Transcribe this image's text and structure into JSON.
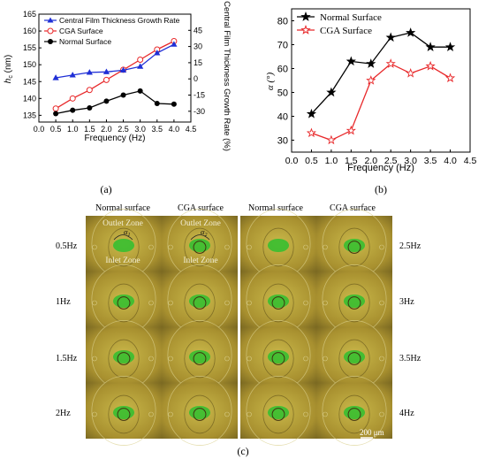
{
  "panels": {
    "a": {
      "label": "(a)",
      "xlabel": "Frequency (Hz)",
      "ylabel_left": "h",
      "ylabel_left_sub": "c",
      "ylabel_left_unit": " (nm)",
      "ylabel_right": "Central Film Thickness Growth Rate (%)",
      "xticks": [
        "0.0",
        "0.5",
        "1.0",
        "1.5",
        "2.0",
        "2.5",
        "3.0",
        "3.5",
        "4.0",
        "4.5"
      ],
      "yticks_left": [
        "135",
        "140",
        "145",
        "150",
        "155",
        "160",
        "165"
      ],
      "yticks_right": [
        "-30",
        "-15",
        "0",
        "15",
        "30",
        "45"
      ],
      "legend": [
        "Central Film Thickness Growth Rate",
        "CGA Surface",
        "Normal Surface"
      ]
    },
    "b": {
      "label": "(b)",
      "xlabel": "Frequency (Hz)",
      "ylabel": "α (°)",
      "xticks": [
        "0.0",
        "0.5",
        "1.0",
        "1.5",
        "2.0",
        "2.5",
        "3.0",
        "3.5",
        "4.0",
        "4.5"
      ],
      "yticks": [
        "30",
        "40",
        "50",
        "60",
        "70",
        "80"
      ],
      "legend": [
        "Normal Surface",
        "CGA Surface"
      ]
    },
    "c": {
      "label": "(c)",
      "headers": [
        "Normal surface",
        "CGA surface",
        "Normal surface",
        "CGA surface"
      ],
      "rows_left": [
        "0.5Hz",
        "1Hz",
        "1.5Hz",
        "2Hz"
      ],
      "rows_right": [
        "2.5Hz",
        "3Hz",
        "3.5Hz",
        "4Hz"
      ],
      "zone_outlet": "Outlet Zone",
      "zone_inlet": "Inlet Zone",
      "alpha1": "α",
      "alpha1_sub": "1",
      "alpha2": "α",
      "alpha2_sub": "2",
      "scale": "200 μm"
    }
  },
  "colors": {
    "growth": "#1f2fd6",
    "cga": "#e8282a",
    "normal": "#000000",
    "photo_bg": "#b9a33a",
    "photo_contact": "#2fbf2f"
  },
  "chart_data": [
    {
      "type": "line",
      "panel": "a",
      "x": [
        0.5,
        1.0,
        1.5,
        2.0,
        2.5,
        3.0,
        3.5,
        4.0
      ],
      "xlim": [
        0,
        4.5
      ],
      "ylim": [
        133,
        165
      ],
      "y2lim": [
        -40,
        60
      ],
      "series": [
        {
          "name": "CGA Surface",
          "axis": "left",
          "values": [
            137,
            140,
            142.5,
            145.5,
            148.5,
            151.5,
            154.5,
            157
          ]
        },
        {
          "name": "Normal Surface",
          "axis": "left",
          "values": [
            135.5,
            136.5,
            137.2,
            139.2,
            141,
            142.2,
            138.5,
            138.3
          ]
        },
        {
          "name": "Central Film Thickness Growth Rate",
          "axis": "right",
          "values": [
            1,
            3.5,
            6,
            6.5,
            8,
            11.5,
            24,
            32
          ]
        }
      ]
    },
    {
      "type": "line",
      "panel": "b",
      "x": [
        0.5,
        1.0,
        1.5,
        2.0,
        2.5,
        3.0,
        3.5,
        4.0
      ],
      "xlim": [
        0,
        4.5
      ],
      "ylim": [
        25,
        85
      ],
      "series": [
        {
          "name": "Normal Surface",
          "values": [
            41,
            50,
            63,
            62,
            73,
            75,
            69,
            69
          ]
        },
        {
          "name": "CGA Surface",
          "values": [
            33,
            30,
            34,
            55,
            62,
            58,
            61,
            56
          ]
        }
      ]
    }
  ]
}
